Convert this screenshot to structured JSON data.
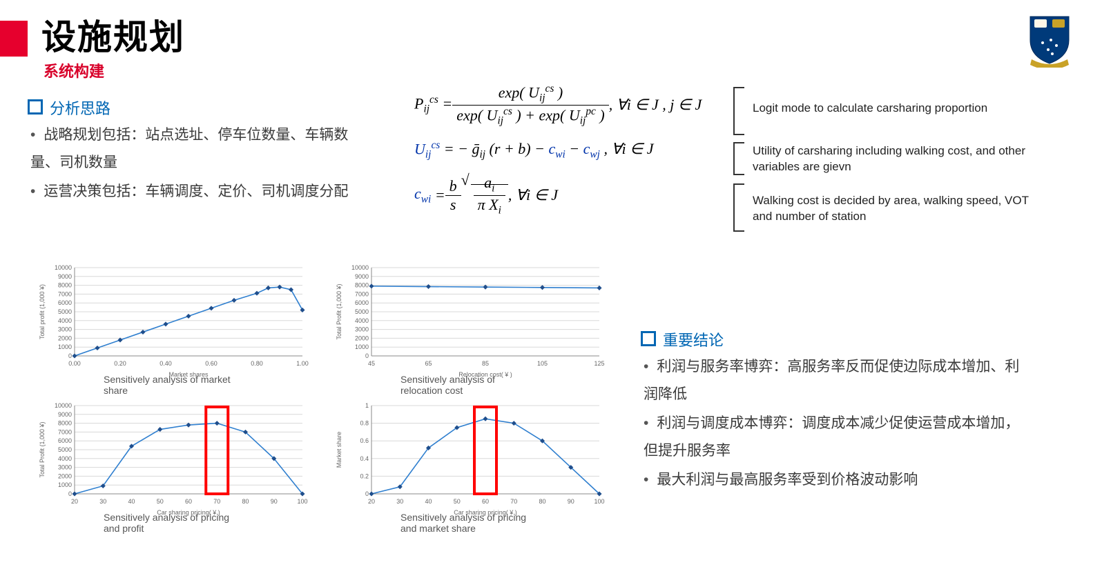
{
  "header": {
    "title": "设施规划",
    "subtitle": "系统构建",
    "accent_color": "#e6002d",
    "crest_colors": {
      "shield": "#003a7a",
      "book": "#fff3e0",
      "gold": "#c9a227",
      "banner": "#c9a227"
    }
  },
  "left": {
    "heading": "分析思路",
    "bullets": [
      "战略规划包括：站点选址、停车位数量、车辆数量、司机数量",
      "运营决策包括：车辆调度、定价、司机调度分配"
    ]
  },
  "formulas": {
    "f1_left": "P",
    "f1_rest": ", ∀i ∈ J , j ∈ J",
    "f2_text": "= − ḡᵢⱼ (r + b) − c_wᵢ − c_wⱼ , ∀i ∈ J",
    "f3_rest": ", ∀i ∈ J",
    "explanations": [
      "Logit mode to calculate carsharing proportion",
      "Utility of carsharing including walking cost, and other variables are gievn",
      "Walking cost is decided by area, walking speed, VOT and number of station"
    ]
  },
  "right": {
    "heading": "重要结论",
    "bullets": [
      "利润与服务率博弈：高服务率反而促使边际成本增加、利润降低",
      "利润与调度成本博弈：调度成本减少促使运营成本增加，但提升服务率",
      "最大利润与最高服务率受到价格波动影响"
    ]
  },
  "charts": {
    "line_color": "#2f7fcf",
    "marker_color": "#1f4e8c",
    "grid_color": "#d8d8d8",
    "axis_color": "#888",
    "highlight_color": "#ff0000",
    "c1": {
      "caption": "Sensitively analysis of market share",
      "ylabel": "Total profit (1,000 ¥)",
      "xlabel": "Market shares",
      "xticks": [
        "0.00",
        "0.20",
        "0.40",
        "0.60",
        "0.80",
        "1.00"
      ],
      "yticks": [
        0,
        1000,
        2000,
        3000,
        4000,
        5000,
        6000,
        7000,
        8000,
        9000,
        10000
      ],
      "xvals": [
        0.0,
        0.1,
        0.2,
        0.3,
        0.4,
        0.5,
        0.6,
        0.7,
        0.8,
        0.85,
        0.9,
        0.95,
        1.0
      ],
      "yvals": [
        0,
        900,
        1800,
        2700,
        3600,
        4500,
        5400,
        6300,
        7100,
        7700,
        7800,
        7500,
        5200
      ]
    },
    "c2": {
      "caption": "Sensitively analysis of relocation cost",
      "ylabel": "Total Profit (1,000 ¥)",
      "xlabel": "Relocation cost( ¥ )",
      "xticks": [
        "45",
        "65",
        "85",
        "105",
        "125"
      ],
      "yticks": [
        0,
        1000,
        2000,
        3000,
        4000,
        5000,
        6000,
        7000,
        8000,
        9000,
        10000
      ],
      "xvals": [
        45,
        65,
        85,
        105,
        125
      ],
      "yvals": [
        7900,
        7850,
        7800,
        7750,
        7700
      ]
    },
    "c3": {
      "caption": "Sensitively analysis of pricing and profit",
      "ylabel": "Total Profit (1,000 ¥)",
      "xlabel": "Car sharing pricing( ¥ )",
      "xticks": [
        "20",
        "30",
        "40",
        "50",
        "60",
        "70",
        "80",
        "90",
        "100"
      ],
      "yticks": [
        0,
        1000,
        2000,
        3000,
        4000,
        5000,
        6000,
        7000,
        8000,
        9000,
        10000
      ],
      "xvals": [
        20,
        30,
        40,
        50,
        60,
        70,
        80,
        90,
        100
      ],
      "yvals": [
        0,
        900,
        5400,
        7300,
        7800,
        8000,
        7000,
        4000,
        0
      ],
      "highlight_x": 70
    },
    "c4": {
      "caption": "Sensitively analysis of pricing and market share",
      "ylabel": "Market share",
      "xlabel": "Car sharing pricing( ¥ )",
      "xticks": [
        "20",
        "30",
        "40",
        "50",
        "60",
        "70",
        "80",
        "90",
        "100"
      ],
      "yticks": [
        0,
        0.2,
        0.4,
        0.6,
        0.8,
        1
      ],
      "xvals": [
        20,
        30,
        40,
        50,
        60,
        70,
        80,
        90,
        100
      ],
      "yvals": [
        0.0,
        0.08,
        0.52,
        0.75,
        0.85,
        0.8,
        0.6,
        0.3,
        0.0
      ],
      "highlight_x": 60
    }
  }
}
